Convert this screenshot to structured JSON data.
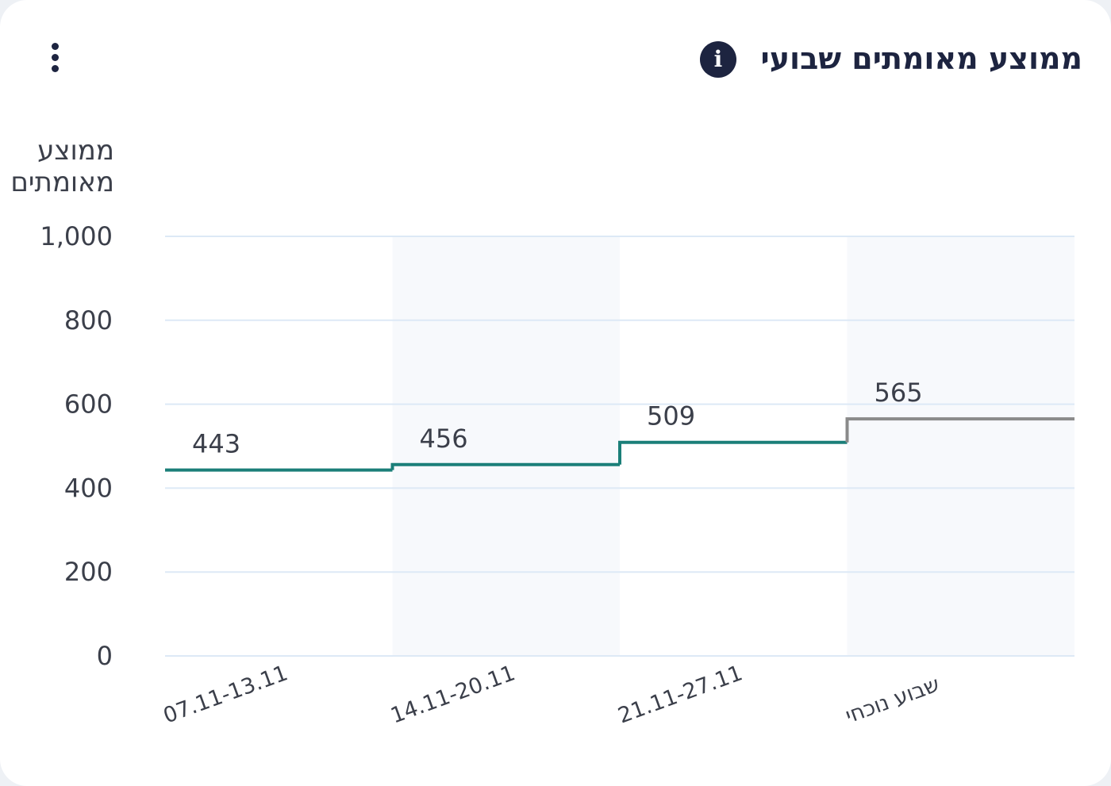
{
  "card": {
    "title": "ממוצע מאומתים שבועי",
    "info_icon": "info-icon",
    "menu_icon": "kebab-menu-icon"
  },
  "chart_data": {
    "type": "line",
    "title": "ממוצע מאומתים שבועי",
    "ylabel_lines": [
      "ממוצע",
      "מאומתים"
    ],
    "xlabel": "",
    "step": true,
    "categories": [
      "07.11-13.11",
      "14.11-20.11",
      "21.11-27.11",
      "שבוע נוכחי"
    ],
    "values": [
      443,
      456,
      509,
      565
    ],
    "data_labels": [
      "443",
      "456",
      "509",
      "565"
    ],
    "ylim": [
      0,
      1000
    ],
    "yticks": [
      0,
      200,
      400,
      600,
      800,
      1000
    ],
    "ytick_labels": [
      "0",
      "200",
      "400",
      "600",
      "800",
      "1,000"
    ],
    "grid": true,
    "legend": "none",
    "colors": {
      "line": "#1b7f79",
      "current_week_line": "#8a8a8a",
      "grid": "#dde9f6",
      "band": "#f7f9fc",
      "text": "#3b3f4a"
    }
  }
}
